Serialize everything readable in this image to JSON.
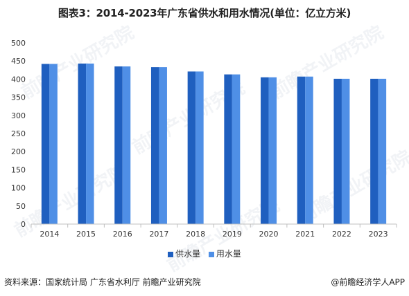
{
  "title": "图表3：2014-2023年广东省供水和用水情况(单位：亿立方米)",
  "source": "资料来源：国家统计局 广东省水利厅 前瞻产业研究院",
  "credit": "@前瞻经济学人APP",
  "watermark": "前瞻产业研究院",
  "colors": {
    "supply": "#1f5fbf",
    "use": "#4f8fe6",
    "axis": "#bfbfbf"
  },
  "chart_data": {
    "type": "bar",
    "title": "图表3：2014-2023年广东省供水和用水情况(单位：亿立方米)",
    "categories": [
      "2014",
      "2015",
      "2016",
      "2017",
      "2018",
      "2019",
      "2020",
      "2021",
      "2022",
      "2023"
    ],
    "series": [
      {
        "name": "供水量",
        "values": [
          442,
          443,
          435,
          433,
          421,
          413,
          405,
          407,
          401,
          401
        ]
      },
      {
        "name": "用水量",
        "values": [
          442,
          443,
          435,
          433,
          421,
          413,
          405,
          407,
          401,
          401
        ]
      }
    ],
    "ylim": [
      0,
      500
    ],
    "yticks": [
      0,
      50,
      100,
      150,
      200,
      250,
      300,
      350,
      400,
      450,
      500
    ],
    "grid": false,
    "legend": "bottom-center"
  }
}
